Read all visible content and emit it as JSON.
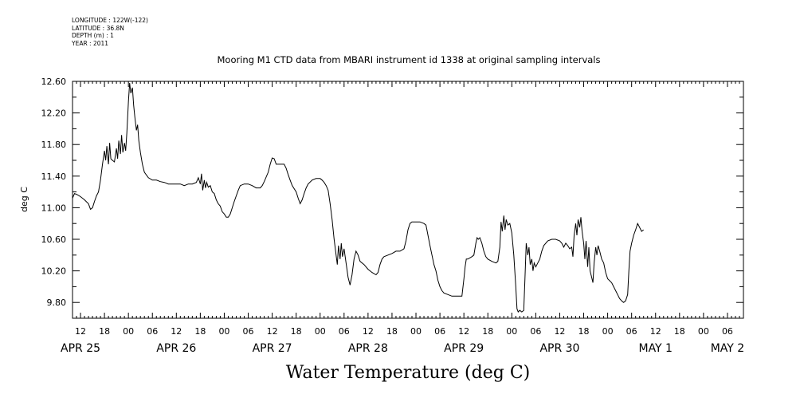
{
  "meta": {
    "longitude": "LONGITUDE : 122W(-122)",
    "latitude": "LATITUDE : 36.8N",
    "depth": "DEPTH (m) : 1",
    "year": "YEAR : 2011"
  },
  "chart_data": {
    "type": "line",
    "title": "Mooring M1 CTD data from MBARI instrument id 1338 at original sampling intervals",
    "xlabel": "Water Temperature (deg C)",
    "ylabel": "deg C",
    "x_range_hours": [
      10,
      178
    ],
    "ylim": [
      9.6,
      12.6
    ],
    "y_ticks": [
      "9.80",
      "10.20",
      "10.60",
      "11.00",
      "11.40",
      "11.80",
      "12.20",
      "12.60"
    ],
    "y_tick_values": [
      9.8,
      10.2,
      10.6,
      11.0,
      11.4,
      11.8,
      12.2,
      12.6
    ],
    "x_hour_ticks": [
      "12",
      "18",
      "00",
      "06",
      "12",
      "18",
      "00",
      "06",
      "12",
      "18",
      "00",
      "06",
      "12",
      "18",
      "00",
      "06",
      "12",
      "18",
      "00",
      "06",
      "12",
      "18",
      "00",
      "06",
      "12",
      "18",
      "00",
      "06"
    ],
    "day_labels": [
      {
        "label": "APR 25",
        "hour": 12
      },
      {
        "label": "APR 26",
        "hour": 36
      },
      {
        "label": "APR 27",
        "hour": 60
      },
      {
        "label": "APR 28",
        "hour": 84
      },
      {
        "label": "APR 29",
        "hour": 108
      },
      {
        "label": "APR 30",
        "hour": 132
      },
      {
        "label": "MAY  1",
        "hour": 156
      },
      {
        "label": "MAY  2",
        "hour": 174
      }
    ],
    "grid": false,
    "series": [
      {
        "points": [
          [
            10,
            11.12
          ],
          [
            10.5,
            11.18
          ],
          [
            11,
            11.17
          ],
          [
            12,
            11.14
          ],
          [
            13,
            11.1
          ],
          [
            14,
            11.05
          ],
          [
            14.5,
            10.98
          ],
          [
            15,
            11.0
          ],
          [
            15.5,
            11.08
          ],
          [
            16,
            11.15
          ],
          [
            16.5,
            11.2
          ],
          [
            17,
            11.35
          ],
          [
            17.5,
            11.55
          ],
          [
            18,
            11.72
          ],
          [
            18.3,
            11.6
          ],
          [
            18.6,
            11.78
          ],
          [
            19,
            11.55
          ],
          [
            19.3,
            11.82
          ],
          [
            19.6,
            11.62
          ],
          [
            20,
            11.6
          ],
          [
            20.5,
            11.58
          ],
          [
            21,
            11.75
          ],
          [
            21.3,
            11.62
          ],
          [
            21.6,
            11.85
          ],
          [
            22,
            11.68
          ],
          [
            22.3,
            11.92
          ],
          [
            22.6,
            11.7
          ],
          [
            23,
            11.82
          ],
          [
            23.3,
            11.72
          ],
          [
            23.6,
            11.95
          ],
          [
            24,
            12.35
          ],
          [
            24.3,
            12.58
          ],
          [
            24.6,
            12.45
          ],
          [
            25,
            12.52
          ],
          [
            25.3,
            12.3
          ],
          [
            25.6,
            12.15
          ],
          [
            26,
            11.98
          ],
          [
            26.3,
            12.05
          ],
          [
            26.6,
            11.85
          ],
          [
            27,
            11.7
          ],
          [
            27.5,
            11.55
          ],
          [
            28,
            11.45
          ],
          [
            29,
            11.38
          ],
          [
            30,
            11.35
          ],
          [
            31,
            11.35
          ],
          [
            32,
            11.33
          ],
          [
            33,
            11.32
          ],
          [
            34,
            11.3
          ],
          [
            35,
            11.3
          ],
          [
            36,
            11.3
          ],
          [
            37,
            11.3
          ],
          [
            38,
            11.28
          ],
          [
            39,
            11.3
          ],
          [
            40,
            11.3
          ],
          [
            41,
            11.32
          ],
          [
            41.5,
            11.38
          ],
          [
            42,
            11.3
          ],
          [
            42.3,
            11.43
          ],
          [
            42.6,
            11.22
          ],
          [
            43,
            11.35
          ],
          [
            43.3,
            11.25
          ],
          [
            43.6,
            11.32
          ],
          [
            44,
            11.26
          ],
          [
            44.5,
            11.28
          ],
          [
            45,
            11.2
          ],
          [
            45.5,
            11.18
          ],
          [
            46,
            11.1
          ],
          [
            46.5,
            11.05
          ],
          [
            47,
            11.02
          ],
          [
            47.5,
            10.95
          ],
          [
            48,
            10.92
          ],
          [
            48.5,
            10.88
          ],
          [
            49,
            10.88
          ],
          [
            49.5,
            10.92
          ],
          [
            50,
            11.0
          ],
          [
            50.5,
            11.08
          ],
          [
            51,
            11.15
          ],
          [
            51.5,
            11.22
          ],
          [
            52,
            11.28
          ],
          [
            53,
            11.3
          ],
          [
            54,
            11.3
          ],
          [
            55,
            11.28
          ],
          [
            56,
            11.25
          ],
          [
            57,
            11.25
          ],
          [
            57.5,
            11.28
          ],
          [
            58,
            11.33
          ],
          [
            59,
            11.45
          ],
          [
            59.5,
            11.55
          ],
          [
            60,
            11.63
          ],
          [
            60.5,
            11.62
          ],
          [
            61,
            11.55
          ],
          [
            62,
            11.55
          ],
          [
            63,
            11.55
          ],
          [
            63.5,
            11.5
          ],
          [
            64,
            11.42
          ],
          [
            64.5,
            11.35
          ],
          [
            65,
            11.28
          ],
          [
            66,
            11.2
          ],
          [
            66.5,
            11.12
          ],
          [
            67,
            11.05
          ],
          [
            67.5,
            11.1
          ],
          [
            68,
            11.18
          ],
          [
            68.5,
            11.25
          ],
          [
            69,
            11.3
          ],
          [
            70,
            11.35
          ],
          [
            71,
            11.37
          ],
          [
            72,
            11.37
          ],
          [
            72.5,
            11.35
          ],
          [
            73,
            11.32
          ],
          [
            73.5,
            11.28
          ],
          [
            74,
            11.22
          ],
          [
            74.5,
            11.05
          ],
          [
            75,
            10.85
          ],
          [
            75.5,
            10.6
          ],
          [
            76,
            10.4
          ],
          [
            76.3,
            10.28
          ],
          [
            76.6,
            10.52
          ],
          [
            77,
            10.35
          ],
          [
            77.3,
            10.55
          ],
          [
            77.6,
            10.38
          ],
          [
            78,
            10.48
          ],
          [
            78.5,
            10.3
          ],
          [
            79,
            10.12
          ],
          [
            79.5,
            10.02
          ],
          [
            80,
            10.15
          ],
          [
            80.5,
            10.35
          ],
          [
            81,
            10.45
          ],
          [
            81.5,
            10.4
          ],
          [
            82,
            10.32
          ],
          [
            83,
            10.28
          ],
          [
            84,
            10.22
          ],
          [
            85,
            10.18
          ],
          [
            86,
            10.15
          ],
          [
            86.5,
            10.18
          ],
          [
            87,
            10.28
          ],
          [
            87.5,
            10.35
          ],
          [
            88,
            10.38
          ],
          [
            89,
            10.4
          ],
          [
            90,
            10.42
          ],
          [
            91,
            10.45
          ],
          [
            92,
            10.45
          ],
          [
            93,
            10.48
          ],
          [
            93.5,
            10.58
          ],
          [
            94,
            10.72
          ],
          [
            94.5,
            10.8
          ],
          [
            95,
            10.82
          ],
          [
            96,
            10.82
          ],
          [
            97,
            10.82
          ],
          [
            98,
            10.8
          ],
          [
            98.5,
            10.78
          ],
          [
            99,
            10.65
          ],
          [
            99.5,
            10.52
          ],
          [
            100,
            10.4
          ],
          [
            100.5,
            10.28
          ],
          [
            101,
            10.2
          ],
          [
            101.5,
            10.08
          ],
          [
            102,
            10.0
          ],
          [
            102.5,
            9.95
          ],
          [
            103,
            9.92
          ],
          [
            104,
            9.9
          ],
          [
            105,
            9.88
          ],
          [
            106,
            9.88
          ],
          [
            107,
            9.88
          ],
          [
            107.5,
            9.88
          ],
          [
            108,
            10.1
          ],
          [
            108.3,
            10.25
          ],
          [
            108.6,
            10.35
          ],
          [
            109,
            10.35
          ],
          [
            110,
            10.38
          ],
          [
            110.5,
            10.4
          ],
          [
            111,
            10.55
          ],
          [
            111.3,
            10.62
          ],
          [
            111.6,
            10.6
          ],
          [
            112,
            10.62
          ],
          [
            112.5,
            10.55
          ],
          [
            113,
            10.45
          ],
          [
            113.5,
            10.38
          ],
          [
            114,
            10.35
          ],
          [
            115,
            10.32
          ],
          [
            116,
            10.3
          ],
          [
            116.5,
            10.32
          ],
          [
            117,
            10.5
          ],
          [
            117.3,
            10.82
          ],
          [
            117.6,
            10.7
          ],
          [
            118,
            10.9
          ],
          [
            118.3,
            10.72
          ],
          [
            118.6,
            10.85
          ],
          [
            119,
            10.78
          ],
          [
            119.5,
            10.8
          ],
          [
            120,
            10.68
          ],
          [
            120.5,
            10.4
          ],
          [
            121,
            10.0
          ],
          [
            121.3,
            9.72
          ],
          [
            121.6,
            9.68
          ],
          [
            122,
            9.7
          ],
          [
            122.5,
            9.68
          ],
          [
            123,
            9.7
          ],
          [
            123.3,
            10.1
          ],
          [
            123.6,
            10.55
          ],
          [
            124,
            10.4
          ],
          [
            124.3,
            10.5
          ],
          [
            124.6,
            10.28
          ],
          [
            125,
            10.35
          ],
          [
            125.3,
            10.2
          ],
          [
            125.6,
            10.3
          ],
          [
            126,
            10.25
          ],
          [
            126.5,
            10.3
          ],
          [
            127,
            10.35
          ],
          [
            127.5,
            10.45
          ],
          [
            128,
            10.52
          ],
          [
            129,
            10.58
          ],
          [
            130,
            10.6
          ],
          [
            131,
            10.6
          ],
          [
            132,
            10.58
          ],
          [
            132.5,
            10.55
          ],
          [
            133,
            10.5
          ],
          [
            133.5,
            10.55
          ],
          [
            134,
            10.52
          ],
          [
            134.5,
            10.48
          ],
          [
            135,
            10.5
          ],
          [
            135.3,
            10.38
          ],
          [
            135.6,
            10.65
          ],
          [
            136,
            10.8
          ],
          [
            136.3,
            10.65
          ],
          [
            136.6,
            10.85
          ],
          [
            137,
            10.75
          ],
          [
            137.3,
            10.88
          ],
          [
            137.6,
            10.7
          ],
          [
            138,
            10.55
          ],
          [
            138.3,
            10.35
          ],
          [
            138.6,
            10.58
          ],
          [
            139,
            10.25
          ],
          [
            139.3,
            10.5
          ],
          [
            139.6,
            10.2
          ],
          [
            140,
            10.12
          ],
          [
            140.3,
            10.05
          ],
          [
            140.6,
            10.3
          ],
          [
            141,
            10.5
          ],
          [
            141.3,
            10.4
          ],
          [
            141.6,
            10.52
          ],
          [
            142,
            10.45
          ],
          [
            142.5,
            10.35
          ],
          [
            143,
            10.3
          ],
          [
            143.5,
            10.18
          ],
          [
            144,
            10.1
          ],
          [
            145,
            10.05
          ],
          [
            145.5,
            10.0
          ],
          [
            146,
            9.95
          ],
          [
            146.5,
            9.9
          ],
          [
            147,
            9.85
          ],
          [
            147.5,
            9.82
          ],
          [
            148,
            9.8
          ],
          [
            148.5,
            9.82
          ],
          [
            149,
            9.9
          ],
          [
            149.3,
            10.2
          ],
          [
            149.6,
            10.45
          ],
          [
            150,
            10.55
          ],
          [
            150.5,
            10.65
          ],
          [
            151,
            10.72
          ],
          [
            151.5,
            10.8
          ],
          [
            152,
            10.75
          ],
          [
            152.5,
            10.7
          ],
          [
            153,
            10.72
          ]
        ]
      }
    ]
  }
}
